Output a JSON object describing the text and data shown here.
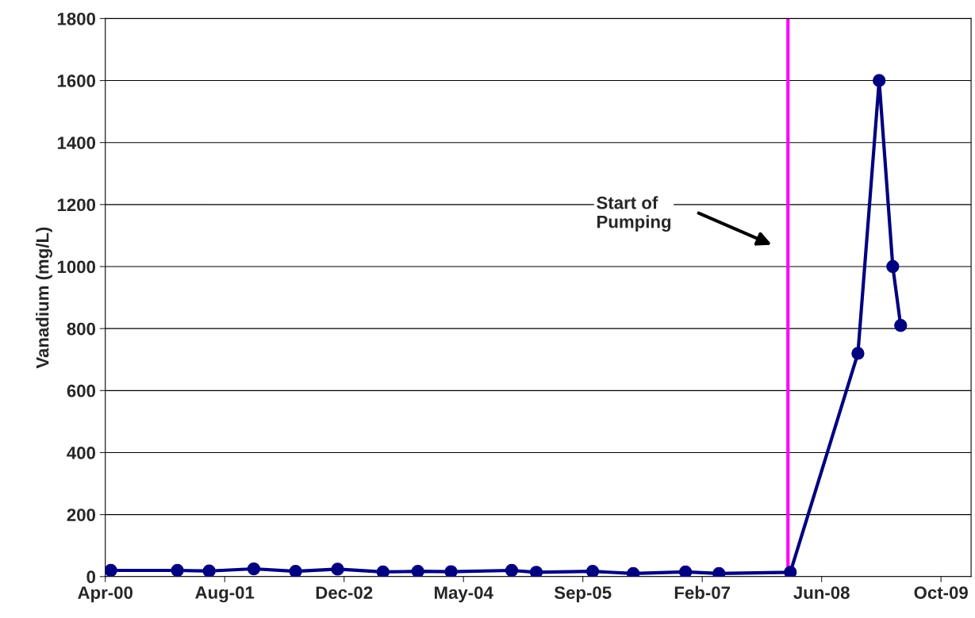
{
  "chart_data": {
    "type": "line",
    "ylabel": "Vanadium (mg/L)",
    "x": [
      "2000-04-24",
      "2001-01-28",
      "2001-06-10",
      "2001-12-14",
      "2002-06-07",
      "2002-11-30",
      "2003-06-08",
      "2003-11-01",
      "2004-03-19",
      "2004-11-28",
      "2005-03-11",
      "2005-11-02",
      "2006-04-21",
      "2006-11-26",
      "2007-04-15",
      "2008-02-08",
      "2008-11-17",
      "2009-02-14",
      "2009-04-12",
      "2009-05-15"
    ],
    "series": [
      {
        "color": "#000080",
        "values": [
          20,
          20,
          18,
          25,
          17,
          24,
          15,
          17,
          16,
          20,
          14,
          17,
          10,
          15,
          10,
          14,
          720,
          1600,
          1000,
          810
        ]
      }
    ],
    "xlim": [
      "2000-04-01",
      "2010-03-06"
    ],
    "xticks": [
      {
        "value": "2000-04-01",
        "label": "Apr-00"
      },
      {
        "value": "2001-08-14",
        "label": "Aug-01"
      },
      {
        "value": "2002-12-27",
        "label": "Dec-02"
      },
      {
        "value": "2004-05-10",
        "label": "May-04"
      },
      {
        "value": "2005-09-22",
        "label": "Sep-05"
      },
      {
        "value": "2007-02-04",
        "label": "Feb-07"
      },
      {
        "value": "2008-06-18",
        "label": "Jun-08"
      },
      {
        "value": "2009-10-31",
        "label": "Oct-09"
      }
    ],
    "ylim": [
      0,
      1800
    ],
    "yticks": [
      0,
      200,
      400,
      600,
      800,
      1000,
      1200,
      1400,
      1600,
      1800
    ],
    "ref_lines": [
      {
        "axis": "x",
        "value": "2008-01-29",
        "color": "#ff00ff"
      }
    ],
    "annotations": [
      "Start of\nPumping"
    ],
    "grid": "y",
    "marker": "circle",
    "line_style": "solid"
  }
}
